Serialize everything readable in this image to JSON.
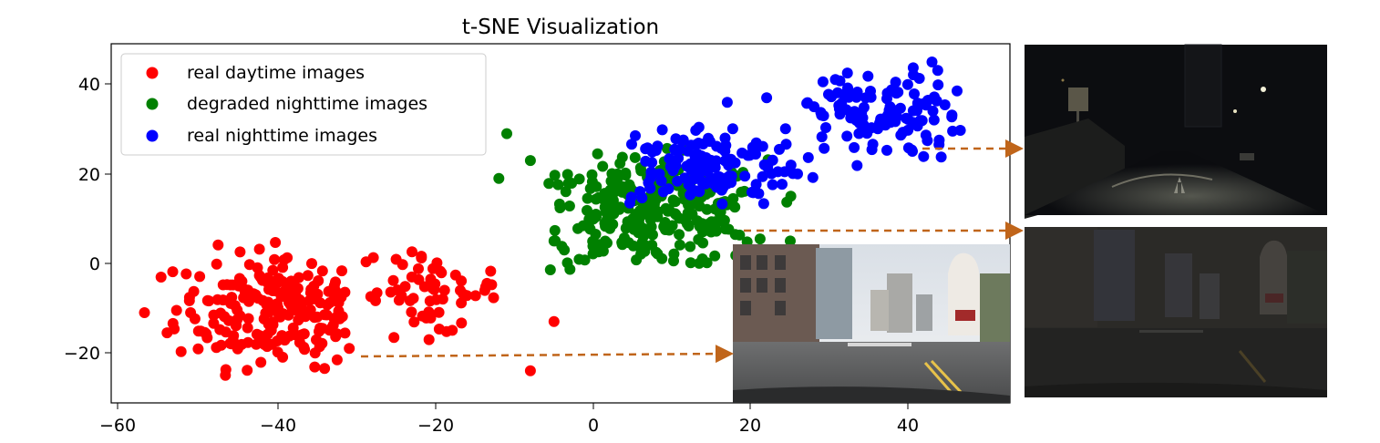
{
  "chart_data": {
    "type": "scatter",
    "title": "t-SNE Visualization",
    "xlabel": "",
    "ylabel": "",
    "xlim": [
      -62,
      53
    ],
    "ylim": [
      -31,
      49
    ],
    "xticks": [
      -60,
      -40,
      -20,
      0,
      20,
      40
    ],
    "yticks": [
      -20,
      0,
      20,
      40
    ],
    "xtick_labels": [
      "−60",
      "−40",
      "−20",
      "0",
      "20",
      "40"
    ],
    "ytick_labels": [
      "−20",
      "0",
      "20",
      "40"
    ],
    "grid": false,
    "legend_position": "upper-left",
    "series": [
      {
        "name": "real daytime images",
        "color": "#ff0000",
        "clusters": [
          {
            "cx": -40,
            "cy": -10,
            "sx": 6.5,
            "sy": 6.5,
            "n": 220,
            "xmin": -57,
            "xmax": -31,
            "ymin": -27,
            "ymax": 5
          },
          {
            "cx": -21,
            "cy": -6,
            "sx": 4.5,
            "sy": 5,
            "n": 60,
            "xmin": -29,
            "xmax": -12,
            "ymin": -19,
            "ymax": 3
          }
        ],
        "points": [
          {
            "x": -8,
            "y": -24
          },
          {
            "x": -5,
            "y": -13
          },
          {
            "x": -57,
            "y": -11
          },
          {
            "x": -31,
            "y": -19
          }
        ]
      },
      {
        "name": "degraded nighttime images",
        "color": "#008000",
        "clusters": [
          {
            "cx": 7,
            "cy": 11,
            "sx": 7.5,
            "sy": 6,
            "n": 280,
            "xmin": -7,
            "xmax": 29,
            "ymin": -2,
            "ymax": 29
          }
        ],
        "points": [
          {
            "x": -11,
            "y": 29
          },
          {
            "x": -12,
            "y": 19
          },
          {
            "x": -8,
            "y": 23
          },
          {
            "x": -5,
            "y": 5
          },
          {
            "x": 25,
            "y": 5
          }
        ]
      },
      {
        "name": "real nighttime images",
        "color": "#0000ff",
        "clusters": [
          {
            "cx": 14,
            "cy": 22,
            "sx": 6.5,
            "sy": 4.5,
            "n": 140,
            "xmin": 4,
            "xmax": 28,
            "ymin": 12,
            "ymax": 32
          },
          {
            "cx": 36,
            "cy": 33,
            "sx": 5.5,
            "sy": 5,
            "n": 120,
            "xmin": 27,
            "xmax": 48,
            "ymin": 19,
            "ymax": 45
          }
        ],
        "points": [
          {
            "x": 17,
            "y": 36
          },
          {
            "x": 22,
            "y": 37
          },
          {
            "x": 43,
            "y": 45
          }
        ]
      }
    ],
    "insets": [
      {
        "name": "daytime-street-photo",
        "arrow_from": {
          "x": -28,
          "y": -21
        }
      },
      {
        "name": "nighttime-street-photo",
        "arrow_from": {
          "x": 42,
          "y": 26
        }
      },
      {
        "name": "degraded-nighttime-photo",
        "arrow_from": {
          "x": 19,
          "y": 7
        }
      }
    ]
  }
}
